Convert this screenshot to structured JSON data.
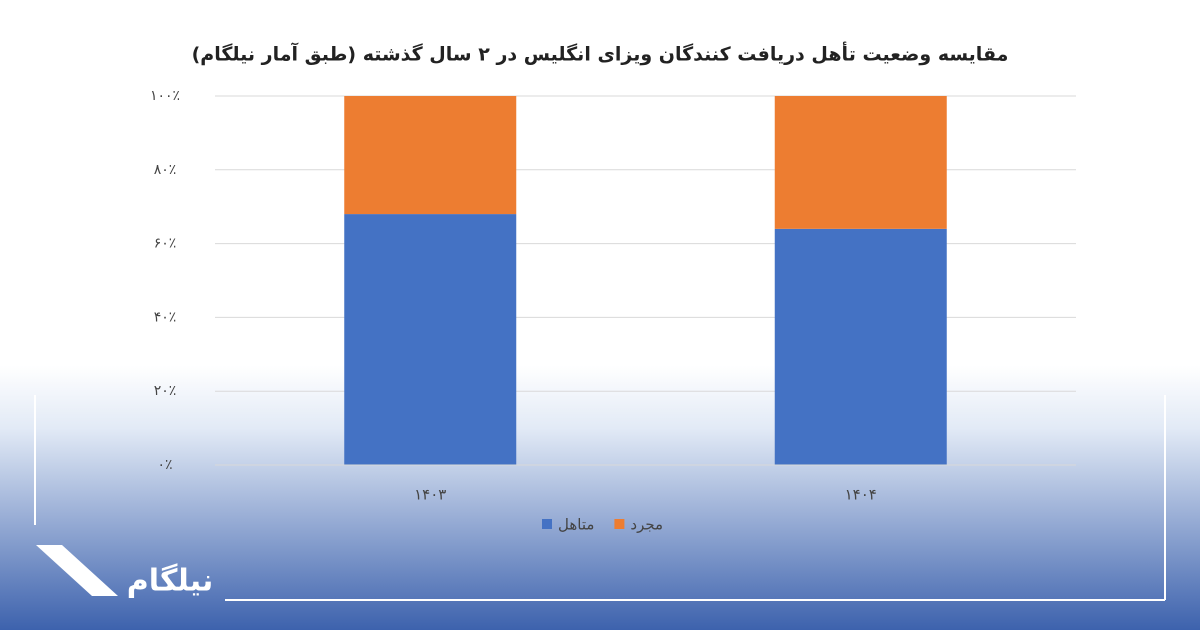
{
  "chart_data": {
    "type": "stacked_bar",
    "title": "مقایسه وضعیت تأهل دریافت کنندگان ویزای انگلیس در ۲ سال گذشته (طبق آمار نیلگام)",
    "categories": [
      "۱۴۰۳",
      "۱۴۰۴"
    ],
    "series": [
      {
        "name": "متاهل",
        "color": "#4472c4",
        "values": [
          68,
          64
        ]
      },
      {
        "name": "مجرد",
        "color": "#ed7d31",
        "values": [
          32,
          36
        ]
      }
    ],
    "ylim": [
      0,
      100
    ],
    "yticks": [
      {
        "value": 0,
        "label": "۰٪"
      },
      {
        "value": 20,
        "label": "۲۰٪"
      },
      {
        "value": 40,
        "label": "۴۰٪"
      },
      {
        "value": 60,
        "label": "۶۰٪"
      },
      {
        "value": 80,
        "label": "۸۰٪"
      },
      {
        "value": 100,
        "label": "۱۰۰٪"
      }
    ],
    "grid": true,
    "legend": "bottom"
  },
  "brand": {
    "logo_text": "نیلگام"
  }
}
